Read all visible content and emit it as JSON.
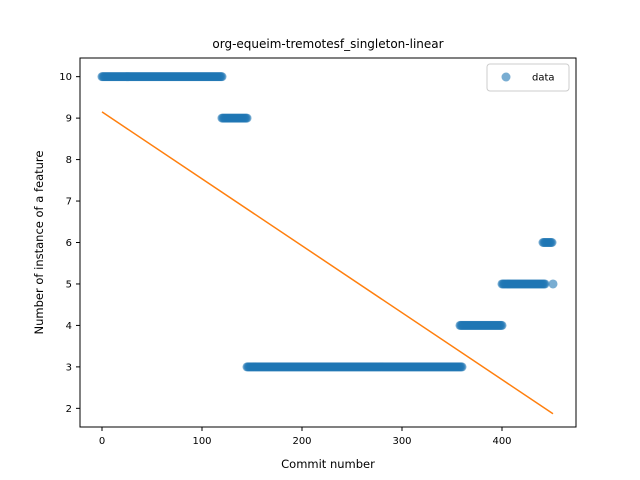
{
  "chart_data": {
    "type": "scatter",
    "title": "org-equeim-tremotesf_singleton-linear",
    "xlabel": "Commit number",
    "ylabel": "Number of instance of a feature",
    "xlim": [
      -22,
      474
    ],
    "ylim": [
      1.55,
      10.45
    ],
    "x_ticks": [
      0,
      100,
      200,
      300,
      400
    ],
    "y_ticks": [
      2,
      3,
      4,
      5,
      6,
      7,
      8,
      9,
      10
    ],
    "grid": false,
    "legend": {
      "position": "top-right",
      "entries": [
        "data"
      ]
    },
    "colors": {
      "data": "#1f77b4",
      "fit": "#ff7f0e"
    },
    "series": [
      {
        "name": "data",
        "kind": "scatter",
        "segments": [
          {
            "x_start": 0,
            "x_end": 120,
            "y": 10
          },
          {
            "x_start": 120,
            "x_end": 145,
            "y": 9
          },
          {
            "x_start": 145,
            "x_end": 360,
            "y": 3
          },
          {
            "x_start": 358,
            "x_end": 400,
            "y": 4
          },
          {
            "x_start": 400,
            "x_end": 443,
            "y": 5
          },
          {
            "x_start": 441,
            "x_end": 450,
            "y": 6
          },
          {
            "x_start": 451,
            "x_end": 451,
            "y": 5
          }
        ]
      },
      {
        "kind": "line",
        "points": [
          {
            "x": 0,
            "y": 9.15
          },
          {
            "x": 451,
            "y": 1.87
          }
        ]
      }
    ]
  }
}
